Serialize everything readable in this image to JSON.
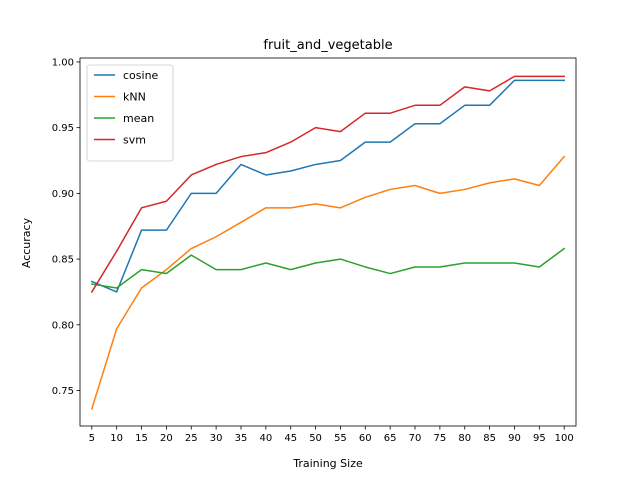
{
  "chart_data": {
    "type": "line",
    "title": "fruit_and_vegetable",
    "xlabel": "Training Size",
    "ylabel": "Accuracy",
    "x": [
      5,
      10,
      15,
      20,
      25,
      30,
      35,
      40,
      45,
      50,
      55,
      60,
      65,
      70,
      75,
      80,
      85,
      90,
      95,
      100
    ],
    "x_ticks": [
      "5",
      "10",
      "15",
      "20",
      "25",
      "30",
      "35",
      "40",
      "45",
      "50",
      "55",
      "60",
      "65",
      "70",
      "75",
      "80",
      "85",
      "90",
      "95",
      "100"
    ],
    "ylim": [
      0.723,
      1.003
    ],
    "y_ticks": [
      "0.75",
      "0.80",
      "0.85",
      "0.90",
      "0.95",
      "1.00"
    ],
    "y_tick_values": [
      0.75,
      0.8,
      0.85,
      0.9,
      0.95,
      1.0
    ],
    "grid": false,
    "legend_position": "top-left",
    "series": [
      {
        "name": "cosine",
        "color": "#1f77b4",
        "values": [
          0.833,
          0.825,
          0.872,
          0.872,
          0.9,
          0.9,
          0.922,
          0.914,
          0.917,
          0.922,
          0.925,
          0.939,
          0.939,
          0.953,
          0.953,
          0.967,
          0.967,
          0.986,
          0.986,
          0.986
        ]
      },
      {
        "name": "kNN",
        "color": "#ff7f0e",
        "values": [
          0.736,
          0.797,
          0.828,
          0.842,
          0.858,
          0.867,
          0.878,
          0.889,
          0.889,
          0.892,
          0.889,
          0.897,
          0.903,
          0.906,
          0.9,
          0.903,
          0.908,
          0.911,
          0.906,
          0.928
        ]
      },
      {
        "name": "mean",
        "color": "#2ca02c",
        "values": [
          0.831,
          0.828,
          0.842,
          0.839,
          0.853,
          0.842,
          0.842,
          0.847,
          0.842,
          0.847,
          0.85,
          0.844,
          0.839,
          0.844,
          0.844,
          0.847,
          0.847,
          0.847,
          0.844,
          0.858
        ]
      },
      {
        "name": "svm",
        "color": "#d62728",
        "values": [
          0.825,
          0.856,
          0.889,
          0.894,
          0.914,
          0.922,
          0.928,
          0.931,
          0.939,
          0.95,
          0.947,
          0.961,
          0.961,
          0.967,
          0.967,
          0.981,
          0.978,
          0.989,
          0.989,
          0.989
        ]
      }
    ]
  }
}
